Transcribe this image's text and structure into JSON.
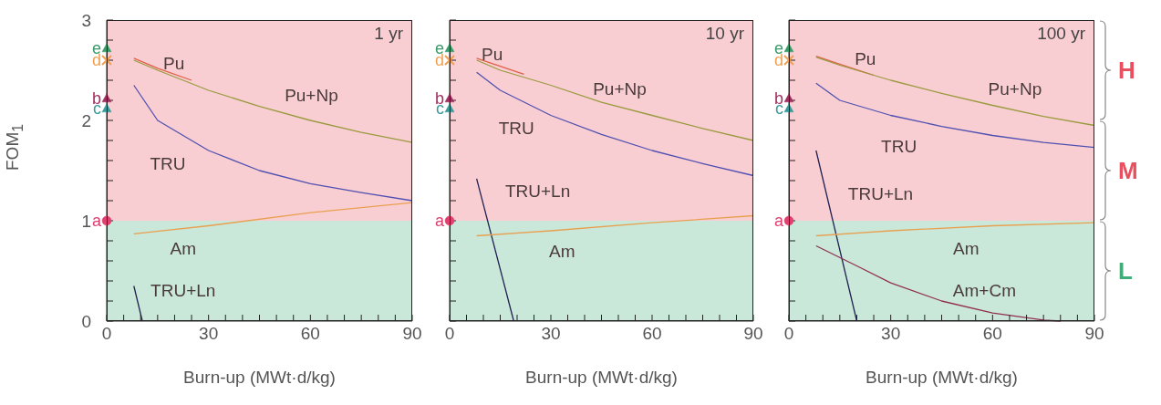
{
  "chart_data": [
    {
      "type": "line",
      "title": "1 yr",
      "xlabel": "Burn-up (MWt·d/kg)",
      "ylabel": "FOM$_{1}$",
      "xlim": [
        0,
        90
      ],
      "ylim": [
        0,
        3
      ],
      "xticks": [
        0,
        {
          "value": 5,
          "label": null
        },
        {
          "value": 10,
          "label": null
        },
        {
          "value": 15,
          "label": null
        },
        {
          "value": 20,
          "label": null
        },
        {
          "value": 25,
          "label": null
        },
        30,
        {
          "value": 35,
          "label": null
        },
        {
          "value": 40,
          "label": null
        },
        {
          "value": 45,
          "label": null
        },
        {
          "value": 50,
          "label": null
        },
        {
          "value": 55,
          "label": null
        },
        60,
        {
          "value": 65,
          "label": null
        },
        {
          "value": 70,
          "label": null
        },
        {
          "value": 75,
          "label": null
        },
        {
          "value": 80,
          "label": null
        },
        {
          "value": 85,
          "label": null
        },
        90
      ],
      "yticks": [
        0,
        {
          "value": 0.2,
          "label": null
        },
        {
          "value": 0.4,
          "label": null
        },
        {
          "value": 0.6,
          "label": null
        },
        {
          "value": 0.8,
          "label": null
        },
        1,
        {
          "value": 1.2,
          "label": null
        },
        {
          "value": 1.4,
          "label": null
        },
        {
          "value": 1.6,
          "label": null
        },
        {
          "value": 1.8,
          "label": null
        },
        2,
        {
          "value": 2.2,
          "label": null
        },
        {
          "value": 2.4,
          "label": null
        },
        {
          "value": 2.6,
          "label": null
        },
        {
          "value": 2.8,
          "label": null
        },
        3
      ],
      "line_style": "solid",
      "marker": "none",
      "bands": [
        {
          "axis": "y",
          "from": 2,
          "to": 3,
          "color": "#e85060"
        },
        {
          "axis": "y",
          "from": 1,
          "to": 2,
          "color": "#e85060"
        },
        {
          "axis": "y",
          "from": 0,
          "to": 1,
          "color": "#3fae7a"
        }
      ],
      "series": [
        {
          "name": "Pu",
          "color": "#e06048",
          "x": [
            8,
            15,
            25
          ],
          "values": [
            2.62,
            2.52,
            2.4
          ]
        },
        {
          "name": "Pu+Np",
          "color": "#9a9a40",
          "x": [
            8,
            15,
            30,
            45,
            60,
            75,
            90
          ],
          "values": [
            2.6,
            2.5,
            2.3,
            2.14,
            2.0,
            1.88,
            1.78
          ]
        },
        {
          "name": "TRU",
          "color": "#5050b0",
          "x": [
            8,
            15,
            30,
            45,
            60,
            75,
            90
          ],
          "values": [
            2.35,
            2.0,
            1.7,
            1.5,
            1.37,
            1.28,
            1.2
          ]
        },
        {
          "name": "TRU+Ln",
          "color": "#202050",
          "x": [
            8,
            10.5
          ],
          "values": [
            0.35,
            0
          ]
        },
        {
          "name": "Am",
          "color": "#e8a050",
          "x": [
            8,
            30,
            60,
            90
          ],
          "values": [
            0.87,
            0.95,
            1.08,
            1.18
          ]
        },
        {
          "name": "a",
          "type": "scatter",
          "marker": "circle",
          "color": "#e04070",
          "x": [
            0
          ],
          "values": [
            1
          ]
        },
        {
          "name": "b",
          "type": "scatter",
          "marker": "triangle",
          "color": "#a03060",
          "x": [
            0
          ],
          "values": [
            2.22
          ]
        },
        {
          "name": "c",
          "type": "scatter",
          "marker": "triangle",
          "color": "#3a9a9a",
          "x": [
            0
          ],
          "values": [
            2.12
          ]
        },
        {
          "name": "d",
          "type": "scatter",
          "marker": "cross",
          "color": "#f0a050",
          "x": [
            0
          ],
          "values": [
            2.6
          ]
        },
        {
          "name": "e",
          "type": "scatter",
          "marker": "triangle",
          "color": "#3a9a6a",
          "x": [
            0
          ],
          "values": [
            2.72
          ]
        }
      ]
    },
    {
      "type": "line",
      "title": "10 yr",
      "xlabel": "Burn-up (MWt·d/kg)",
      "xlim": [
        0,
        90
      ],
      "ylim": [
        0,
        3
      ],
      "tick_labels": "x",
      "xticks": [
        0,
        {
          "value": 5,
          "label": null
        },
        {
          "value": 10,
          "label": null
        },
        {
          "value": 15,
          "label": null
        },
        {
          "value": 20,
          "label": null
        },
        {
          "value": 25,
          "label": null
        },
        30,
        {
          "value": 35,
          "label": null
        },
        {
          "value": 40,
          "label": null
        },
        {
          "value": 45,
          "label": null
        },
        {
          "value": 50,
          "label": null
        },
        {
          "value": 55,
          "label": null
        },
        60,
        {
          "value": 65,
          "label": null
        },
        {
          "value": 70,
          "label": null
        },
        {
          "value": 75,
          "label": null
        },
        {
          "value": 80,
          "label": null
        },
        {
          "value": 85,
          "label": null
        },
        90
      ],
      "yticks": [
        0,
        {
          "value": 0.2,
          "label": null
        },
        {
          "value": 0.4,
          "label": null
        },
        {
          "value": 0.6,
          "label": null
        },
        {
          "value": 0.8,
          "label": null
        },
        1,
        {
          "value": 1.2,
          "label": null
        },
        {
          "value": 1.4,
          "label": null
        },
        {
          "value": 1.6,
          "label": null
        },
        {
          "value": 1.8,
          "label": null
        },
        2,
        {
          "value": 2.2,
          "label": null
        },
        {
          "value": 2.4,
          "label": null
        },
        {
          "value": 2.6,
          "label": null
        },
        {
          "value": 2.8,
          "label": null
        },
        3
      ],
      "line_style": "solid",
      "marker": "none",
      "bands": [
        {
          "axis": "y",
          "from": 2,
          "to": 3,
          "color": "#e85060"
        },
        {
          "axis": "y",
          "from": 1,
          "to": 2,
          "color": "#e85060"
        },
        {
          "axis": "y",
          "from": 0,
          "to": 1,
          "color": "#3fae7a"
        }
      ],
      "series": [
        {
          "name": "Pu",
          "color": "#e06048",
          "x": [
            8,
            15,
            22
          ],
          "values": [
            2.62,
            2.54,
            2.46
          ]
        },
        {
          "name": "Pu+Np",
          "color": "#9a9a40",
          "x": [
            8,
            15,
            30,
            45,
            60,
            75,
            90
          ],
          "values": [
            2.6,
            2.5,
            2.35,
            2.18,
            2.05,
            1.92,
            1.8
          ]
        },
        {
          "name": "TRU",
          "color": "#5050b0",
          "x": [
            8,
            15,
            30,
            45,
            60,
            75,
            90
          ],
          "values": [
            2.48,
            2.3,
            2.05,
            1.86,
            1.7,
            1.57,
            1.45
          ]
        },
        {
          "name": "TRU+Ln",
          "color": "#202050",
          "x": [
            8,
            19
          ],
          "values": [
            1.42,
            0
          ]
        },
        {
          "name": "Am",
          "color": "#e8a050",
          "x": [
            8,
            30,
            60,
            90
          ],
          "values": [
            0.85,
            0.9,
            0.98,
            1.05
          ]
        },
        {
          "name": "a",
          "type": "scatter",
          "marker": "circle",
          "color": "#e04070",
          "x": [
            0
          ],
          "values": [
            1
          ]
        },
        {
          "name": "b",
          "type": "scatter",
          "marker": "triangle",
          "color": "#a03060",
          "x": [
            0
          ],
          "values": [
            2.22
          ]
        },
        {
          "name": "c",
          "type": "scatter",
          "marker": "triangle",
          "color": "#3a9a9a",
          "x": [
            0
          ],
          "values": [
            2.12
          ]
        },
        {
          "name": "d",
          "type": "scatter",
          "marker": "cross",
          "color": "#f0a050",
          "x": [
            0
          ],
          "values": [
            2.6
          ]
        },
        {
          "name": "e",
          "type": "scatter",
          "marker": "triangle",
          "color": "#3a9a6a",
          "x": [
            0
          ],
          "values": [
            2.72
          ]
        }
      ]
    },
    {
      "type": "line",
      "title": "100 yr",
      "xlabel": "Burn-up (MWt·d/kg)",
      "xlim": [
        0,
        90
      ],
      "ylim": [
        0,
        3
      ],
      "tick_labels": "x",
      "xticks": [
        0,
        {
          "value": 5,
          "label": null
        },
        {
          "value": 10,
          "label": null
        },
        {
          "value": 15,
          "label": null
        },
        {
          "value": 20,
          "label": null
        },
        {
          "value": 25,
          "label": null
        },
        30,
        {
          "value": 35,
          "label": null
        },
        {
          "value": 40,
          "label": null
        },
        {
          "value": 45,
          "label": null
        },
        {
          "value": 50,
          "label": null
        },
        {
          "value": 55,
          "label": null
        },
        60,
        {
          "value": 65,
          "label": null
        },
        {
          "value": 70,
          "label": null
        },
        {
          "value": 75,
          "label": null
        },
        {
          "value": 80,
          "label": null
        },
        {
          "value": 85,
          "label": null
        },
        90
      ],
      "yticks": [
        0,
        {
          "value": 0.2,
          "label": null
        },
        {
          "value": 0.4,
          "label": null
        },
        {
          "value": 0.6,
          "label": null
        },
        {
          "value": 0.8,
          "label": null
        },
        1,
        {
          "value": 1.2,
          "label": null
        },
        {
          "value": 1.4,
          "label": null
        },
        {
          "value": 1.6,
          "label": null
        },
        {
          "value": 1.8,
          "label": null
        },
        2,
        {
          "value": 2.2,
          "label": null
        },
        {
          "value": 2.4,
          "label": null
        },
        {
          "value": 2.6,
          "label": null
        },
        {
          "value": 2.8,
          "label": null
        },
        3
      ],
      "line_style": "solid",
      "marker": "none",
      "bands": [
        {
          "axis": "y",
          "from": 2,
          "to": 3,
          "color": "#e85060",
          "label": "H"
        },
        {
          "axis": "y",
          "from": 1,
          "to": 2,
          "color": "#e85060",
          "label": "M"
        },
        {
          "axis": "y",
          "from": 0,
          "to": 1,
          "color": "#3fae7a",
          "label": "L"
        }
      ],
      "series": [
        {
          "name": "Pu",
          "color": "#e06048",
          "x": [
            8,
            15,
            25
          ],
          "values": [
            2.64,
            2.56,
            2.45
          ]
        },
        {
          "name": "Pu+Np",
          "color": "#9a9a40",
          "x": [
            8,
            15,
            30,
            45,
            60,
            75,
            90
          ],
          "values": [
            2.63,
            2.55,
            2.4,
            2.27,
            2.15,
            2.04,
            1.95
          ]
        },
        {
          "name": "TRU",
          "color": "#5050b0",
          "x": [
            8,
            15,
            30,
            45,
            60,
            75,
            90
          ],
          "values": [
            2.37,
            2.2,
            2.05,
            1.94,
            1.85,
            1.78,
            1.73
          ]
        },
        {
          "name": "TRU+Ln",
          "color": "#202050",
          "x": [
            8,
            20
          ],
          "values": [
            1.7,
            0
          ]
        },
        {
          "name": "Am",
          "color": "#e8a050",
          "x": [
            8,
            30,
            60,
            90
          ],
          "values": [
            0.85,
            0.9,
            0.95,
            0.98
          ]
        },
        {
          "name": "Am+Cm",
          "color": "#903050",
          "x": [
            8,
            20,
            30,
            45,
            60,
            75,
            80
          ],
          "values": [
            0.75,
            0.55,
            0.38,
            0.2,
            0.08,
            0.01,
            0
          ]
        },
        {
          "name": "a",
          "type": "scatter",
          "marker": "circle",
          "color": "#e04070",
          "x": [
            0
          ],
          "values": [
            1
          ]
        },
        {
          "name": "b",
          "type": "scatter",
          "marker": "triangle",
          "color": "#a03060",
          "x": [
            0
          ],
          "values": [
            2.22
          ]
        },
        {
          "name": "c",
          "type": "scatter",
          "marker": "triangle",
          "color": "#3a9a9a",
          "x": [
            0
          ],
          "values": [
            2.12
          ]
        },
        {
          "name": "d",
          "type": "scatter",
          "marker": "cross",
          "color": "#f0a050",
          "x": [
            0
          ],
          "values": [
            2.6
          ]
        },
        {
          "name": "e",
          "type": "scatter",
          "marker": "triangle",
          "color": "#3a9a6a",
          "x": [
            0
          ],
          "values": [
            2.72
          ]
        }
      ]
    }
  ]
}
